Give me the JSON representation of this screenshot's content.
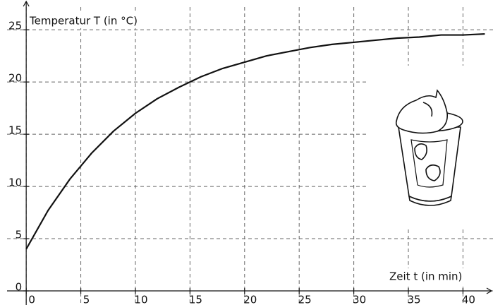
{
  "chart_data": {
    "type": "line",
    "y_label": "Temperatur T (in °C)",
    "x_label": "Zeit t (in min)",
    "x": [
      0,
      2,
      4,
      6,
      8,
      10,
      12,
      14,
      16,
      18,
      20,
      22,
      24,
      26,
      28,
      30,
      32,
      34,
      36,
      38,
      40,
      42
    ],
    "series": [
      {
        "color": "#111111",
        "values": [
          4.0,
          7.7,
          10.7,
          13.2,
          15.3,
          17.0,
          18.4,
          19.5,
          20.5,
          21.3,
          21.9,
          22.5,
          22.9,
          23.3,
          23.6,
          23.8,
          24.0,
          24.2,
          24.3,
          24.5,
          24.5,
          24.6
        ]
      }
    ],
    "xlim": [
      -2.4,
      42.75
    ],
    "ylim": [
      -1.35,
      27.85
    ],
    "xticks": [
      0,
      5,
      10,
      15,
      20,
      25,
      30,
      35,
      40
    ],
    "yticks": [
      0,
      5,
      10,
      15,
      20,
      25
    ],
    "grid": true
  }
}
